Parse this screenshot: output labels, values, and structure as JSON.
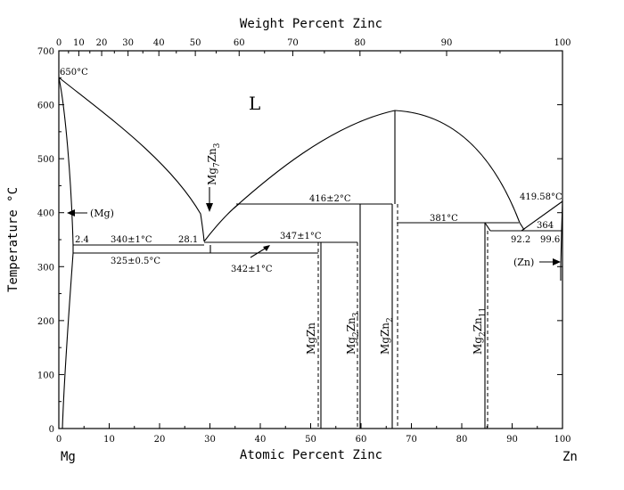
{
  "title_top": "Weight Percent Zinc",
  "xlabel": "Atomic Percent Zinc",
  "ylabel": "Temperature °C",
  "left_element": "Mg",
  "right_element": "Zn",
  "phase_liquid": "L",
  "axis": {
    "x_range": [
      0,
      100
    ],
    "y_range": [
      0,
      700
    ],
    "x_ticks": [
      "0",
      "10",
      "20",
      "30",
      "40",
      "50",
      "60",
      "70",
      "80",
      "90",
      "100"
    ],
    "y_ticks": [
      "0",
      "100",
      "200",
      "300",
      "400",
      "500",
      "600",
      "700"
    ],
    "top_ticks": [
      "0",
      "10",
      "20",
      "30",
      "40",
      "50",
      "60",
      "70",
      "80",
      "90",
      "100"
    ]
  },
  "labels": {
    "t_650": "650°C",
    "t_416": "416±2°C",
    "t_381": "381°C",
    "t_419": "419.58°C",
    "t_347": "347±1°C",
    "t_340": "340±1°C",
    "t_325": "325±0.5°C",
    "t_342": "342±1°C",
    "c_2_4": "2.4",
    "c_28_1": "28.1",
    "c_364": "364",
    "c_92_2": "92.2",
    "c_99_6": "99.6",
    "mg_phase": "(Mg)",
    "zn_phase": "(Zn)"
  },
  "compounds": [
    {
      "id": "mg7zn3",
      "base": "Mg",
      "sub1": "7",
      "mid": "Zn",
      "sub2": "3",
      "x_at": 30.0
    },
    {
      "id": "mgzn",
      "base": "MgZn",
      "sub1": "",
      "mid": "",
      "sub2": "",
      "x_at": 50.0
    },
    {
      "id": "mg2zn3",
      "base": "Mg",
      "sub1": "2",
      "mid": "Zn",
      "sub2": "3",
      "x_at": 60.0
    },
    {
      "id": "mgzn2",
      "base": "MgZn",
      "sub1": "",
      "mid": "",
      "sub2": "2",
      "x_at": 66.7
    },
    {
      "id": "mg2zn11",
      "base": "Mg",
      "sub1": "2",
      "mid": "Zn",
      "sub2": "11",
      "x_at": 84.6
    }
  ]
}
